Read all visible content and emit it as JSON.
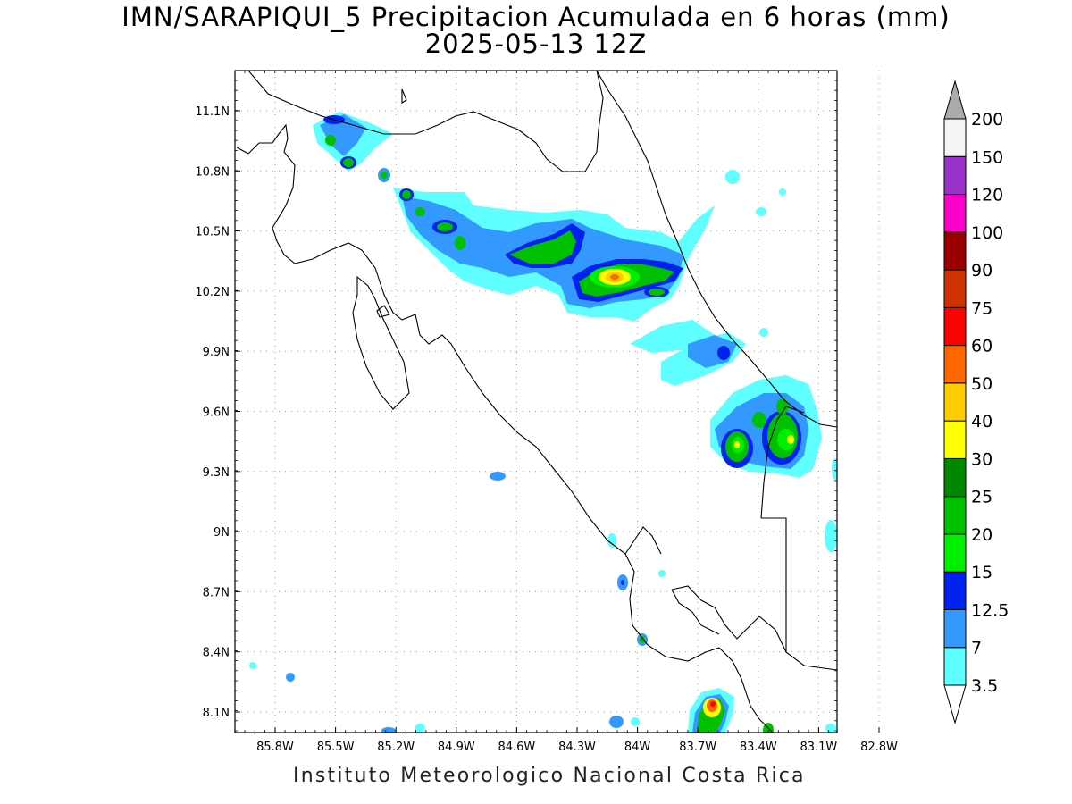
{
  "title_line1": "IMN/SARAPIQUI_5 Precipitacion Acumulada en 6 horas (mm)",
  "title_line2": "2025-05-13 12Z",
  "footer": "Instituto Meteorologico Nacional Costa Rica",
  "map": {
    "lon_ticks": [
      "85.8W",
      "85.5W",
      "85.2W",
      "84.9W",
      "84.6W",
      "84.3W",
      "84W",
      "83.7W",
      "83.4W",
      "83.1W",
      "82.8W"
    ],
    "lat_ticks": [
      "11.1N",
      "10.8N",
      "10.5N",
      "10.2N",
      "9.9N",
      "9.6N",
      "9.3N",
      "9N",
      "8.7N",
      "8.4N",
      "8.1N"
    ],
    "grid": true
  },
  "colorbar": {
    "labels": [
      "3.5",
      "7",
      "12.5",
      "15",
      "20",
      "25",
      "30",
      "40",
      "50",
      "60",
      "75",
      "90",
      "100",
      "120",
      "150",
      "200"
    ],
    "colors": [
      "#60ffff",
      "#3399ff",
      "#0022ee",
      "#00ee00",
      "#00c000",
      "#008800",
      "#ffff00",
      "#ffcc00",
      "#ff6600",
      "#ff0000",
      "#cc3300",
      "#990000",
      "#ff00cc",
      "#9933cc",
      "#f5f5f5",
      "#aaaaaa"
    ],
    "units": "mm"
  }
}
